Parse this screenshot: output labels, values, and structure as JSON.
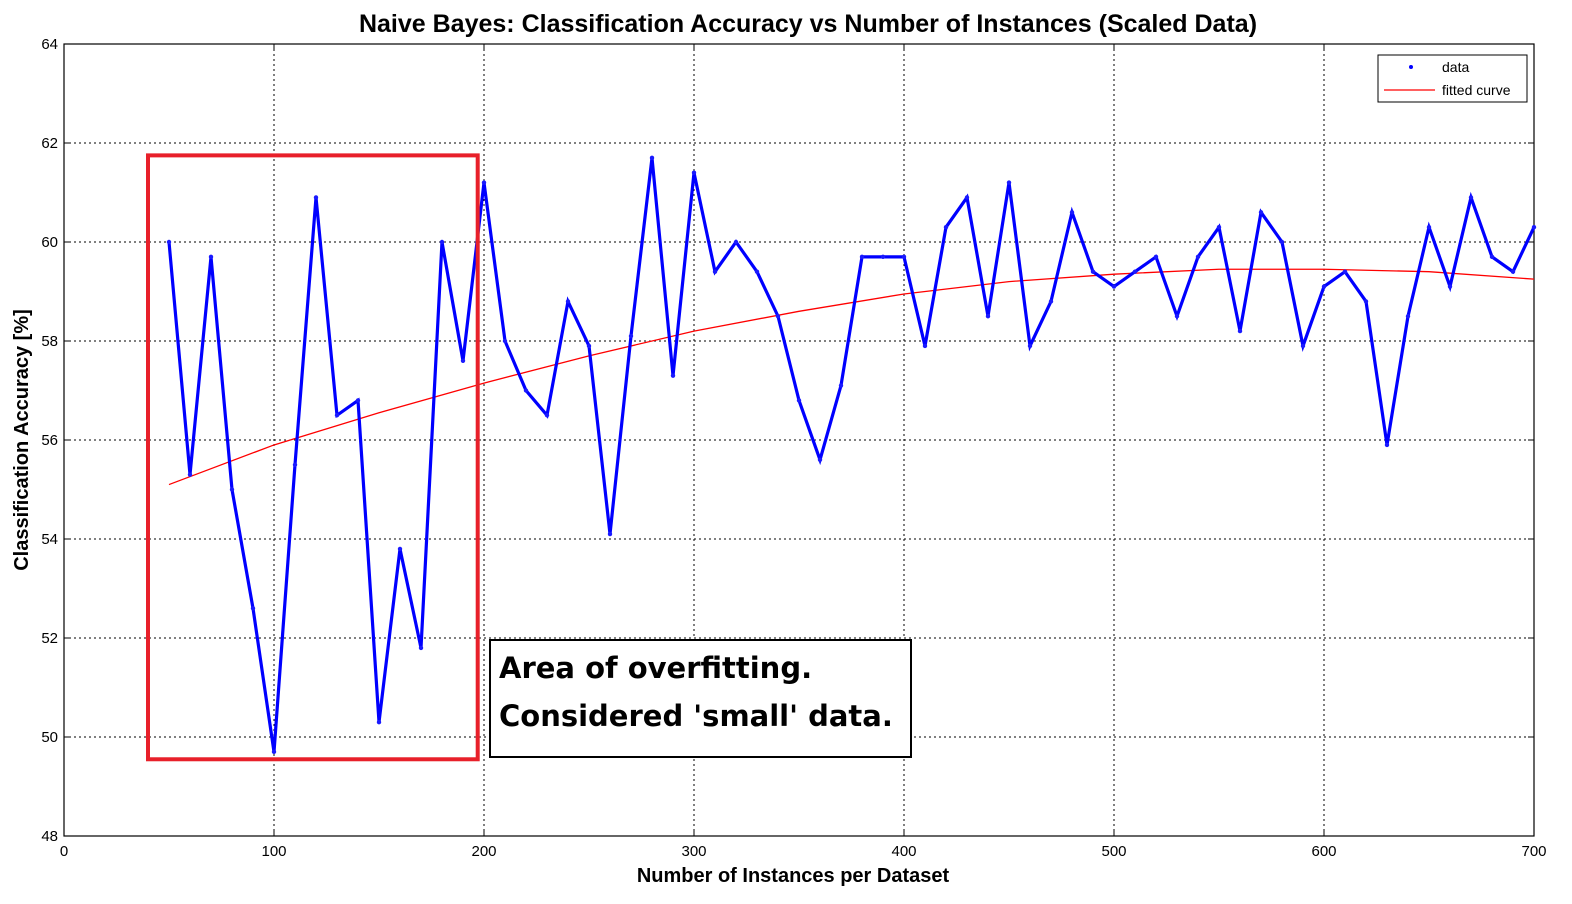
{
  "chart_data": {
    "type": "line",
    "title": "Naive Bayes: Classification Accuracy vs Number of Instances (Scaled Data)",
    "xlabel": "Number of Instances per Dataset",
    "ylabel": "Classification Accuracy [%]",
    "xlim": [
      0,
      700
    ],
    "ylim": [
      48,
      64
    ],
    "xticks": [
      0,
      100,
      200,
      300,
      400,
      500,
      600,
      700
    ],
    "yticks": [
      48,
      50,
      52,
      54,
      56,
      58,
      60,
      62,
      64
    ],
    "grid": true,
    "legend_position": "top-right",
    "series": [
      {
        "name": "data",
        "color": "#0000ff",
        "marker": "point",
        "x": [
          50,
          60,
          70,
          80,
          90,
          100,
          110,
          120,
          130,
          140,
          150,
          160,
          170,
          180,
          190,
          200,
          210,
          220,
          230,
          240,
          250,
          260,
          270,
          280,
          290,
          300,
          310,
          320,
          330,
          340,
          350,
          360,
          370,
          380,
          390,
          400,
          410,
          420,
          430,
          440,
          450,
          460,
          470,
          480,
          490,
          500,
          510,
          520,
          530,
          540,
          550,
          560,
          570,
          580,
          590,
          600,
          610,
          620,
          630,
          640,
          650,
          660,
          670,
          680,
          690,
          700
        ],
        "y": [
          60.0,
          55.3,
          59.7,
          55.0,
          52.6,
          49.7,
          55.5,
          60.9,
          56.5,
          56.8,
          50.3,
          53.8,
          51.8,
          60.0,
          57.6,
          61.2,
          58.0,
          57.0,
          56.5,
          58.8,
          57.9,
          54.1,
          58.1,
          61.7,
          57.3,
          61.4,
          59.4,
          60.0,
          59.4,
          58.5,
          56.8,
          55.6,
          57.1,
          59.7,
          59.7,
          59.7,
          57.9,
          60.3,
          60.9,
          58.5,
          61.2,
          57.9,
          58.8,
          60.6,
          59.4,
          59.1,
          59.4,
          59.7,
          58.5,
          59.7,
          60.3,
          58.2,
          60.6,
          60.0,
          57.9,
          59.1,
          59.4,
          58.8,
          55.9,
          58.5,
          60.3,
          59.1,
          60.9,
          59.7,
          59.4,
          60.3
        ]
      },
      {
        "name": "fitted curve",
        "color": "#ff0000",
        "x": [
          50,
          100,
          150,
          200,
          250,
          300,
          350,
          400,
          450,
          500,
          550,
          600,
          650,
          700
        ],
        "y": [
          55.1,
          55.9,
          56.55,
          57.15,
          57.7,
          58.2,
          58.6,
          58.95,
          59.2,
          59.35,
          59.45,
          59.45,
          59.4,
          59.25
        ]
      }
    ],
    "annotations": [
      {
        "text_lines": [
          "Area of overfitting.",
          "Considered 'small' data."
        ],
        "highlight_box_x": [
          40,
          197
        ],
        "highlight_box_y": [
          49.55,
          61.75
        ],
        "highlight_color": "#e8202a"
      }
    ]
  }
}
